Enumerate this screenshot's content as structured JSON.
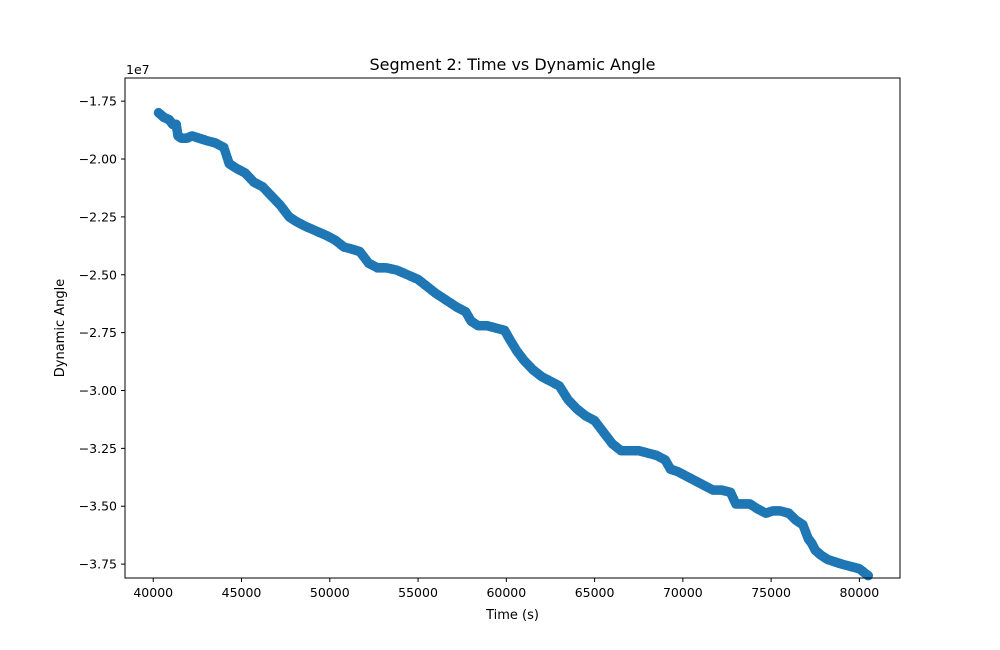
{
  "chart_data": {
    "type": "scatter",
    "title": "Segment 2: Time vs Dynamic Angle",
    "xlabel": "Time (s)",
    "ylabel": "Dynamic Angle",
    "y_offset_label": "1e7",
    "y_scale": 10000000,
    "xlim": [
      38400,
      82300
    ],
    "ylim": [
      -38.1,
      -16.5
    ],
    "x_ticks": [
      40000,
      45000,
      50000,
      55000,
      60000,
      65000,
      70000,
      75000,
      80000
    ],
    "x_tick_labels": [
      "40000",
      "45000",
      "50000",
      "55000",
      "60000",
      "65000",
      "70000",
      "75000",
      "80000"
    ],
    "y_ticks": [
      -17.5,
      -20.0,
      -22.5,
      -25.0,
      -27.5,
      -30.0,
      -32.5,
      -35.0,
      -37.5
    ],
    "y_tick_labels": [
      "−1.75",
      "−2.00",
      "−2.25",
      "−2.50",
      "−2.75",
      "−3.00",
      "−3.25",
      "−3.50",
      "−3.75"
    ],
    "grid": false,
    "marker_color": "#1f77b4",
    "series": [
      {
        "x": [
          40300,
          40600,
          40900,
          41100,
          41300,
          41400,
          41600,
          41900,
          42200,
          42600,
          43000,
          43500,
          44000,
          44300,
          44700,
          45200,
          45700,
          46200,
          46700,
          47200,
          47700,
          48100,
          48600,
          49200,
          49800,
          50300,
          50800,
          51300,
          51700,
          52200,
          52700,
          53200,
          53800,
          54400,
          55000,
          55500,
          56000,
          56600,
          57200,
          57700,
          58000,
          58400,
          58900,
          59400,
          59900,
          60200,
          60600,
          61000,
          61500,
          62000,
          62500,
          63000,
          63500,
          64000,
          64500,
          65000,
          65500,
          66000,
          66500,
          67000,
          67500,
          68000,
          68500,
          69000,
          69300,
          69700,
          70200,
          70700,
          71200,
          71700,
          72200,
          72700,
          73000,
          73400,
          73800,
          74200,
          74700,
          75100,
          75500,
          76000,
          76400,
          76800,
          77100,
          77300,
          77500,
          77800,
          78200,
          78600,
          79000,
          79500,
          80000,
          80500
        ],
        "y": [
          -18.0,
          -18.2,
          -18.3,
          -18.5,
          -18.5,
          -19.0,
          -19.1,
          -19.1,
          -19.0,
          -19.1,
          -19.2,
          -19.3,
          -19.5,
          -20.2,
          -20.4,
          -20.6,
          -21.0,
          -21.2,
          -21.6,
          -22.0,
          -22.5,
          -22.7,
          -22.9,
          -23.1,
          -23.3,
          -23.5,
          -23.8,
          -23.9,
          -24.0,
          -24.5,
          -24.7,
          -24.7,
          -24.8,
          -25.0,
          -25.2,
          -25.5,
          -25.8,
          -26.1,
          -26.4,
          -26.6,
          -27.0,
          -27.2,
          -27.2,
          -27.3,
          -27.4,
          -27.8,
          -28.3,
          -28.7,
          -29.1,
          -29.4,
          -29.6,
          -29.8,
          -30.4,
          -30.8,
          -31.1,
          -31.3,
          -31.8,
          -32.3,
          -32.6,
          -32.6,
          -32.6,
          -32.7,
          -32.8,
          -33.0,
          -33.4,
          -33.5,
          -33.7,
          -33.9,
          -34.1,
          -34.3,
          -34.3,
          -34.4,
          -34.9,
          -34.9,
          -34.9,
          -35.1,
          -35.3,
          -35.2,
          -35.2,
          -35.3,
          -35.6,
          -35.8,
          -36.4,
          -36.6,
          -36.9,
          -37.1,
          -37.3,
          -37.4,
          -37.5,
          -37.6,
          -37.7,
          -38.0
        ]
      }
    ]
  }
}
